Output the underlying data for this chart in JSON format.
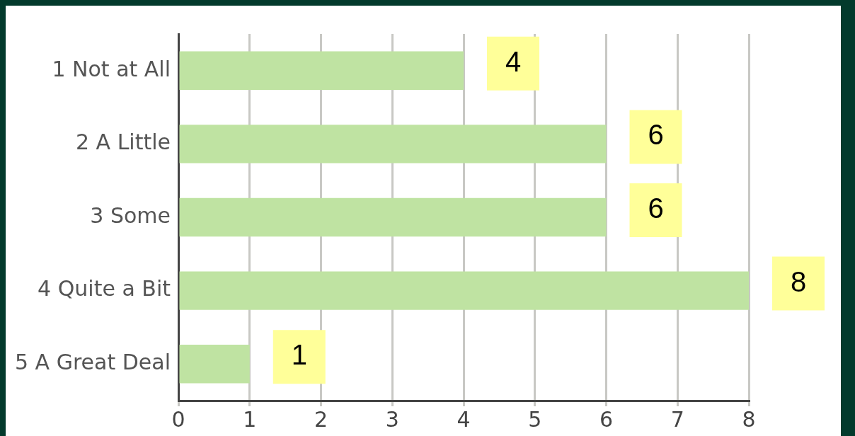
{
  "chart_data": {
    "type": "bar",
    "orientation": "horizontal",
    "categories": [
      "1 Not at All",
      "2 A Little",
      "3 Some",
      "4 Quite a Bit",
      "5 A Great Deal"
    ],
    "values": [
      4,
      6,
      6,
      8,
      1
    ],
    "color": "#bfe3a2",
    "xlim": [
      0,
      8
    ],
    "xticks": [
      0,
      1,
      2,
      3,
      4,
      5,
      6,
      7,
      8
    ],
    "grid": "x",
    "data_labels": true
  }
}
